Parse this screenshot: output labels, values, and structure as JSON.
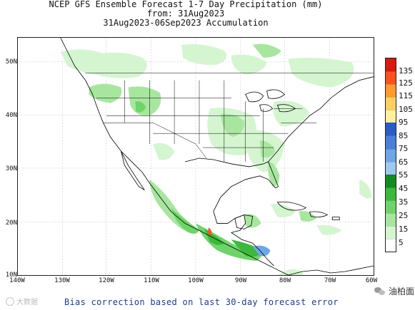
{
  "title": {
    "line1": "NCEP GFS Ensemble Forecast 1-7 Day Precipitation (mm)",
    "line2": "from: 31Aug2023",
    "line3": "31Aug2023-06Sep2023 Accumulation"
  },
  "axes": {
    "lat_labels": [
      "50N",
      "40N",
      "30N",
      "20N",
      "10N"
    ],
    "lon_labels": [
      "140W",
      "130W",
      "120W",
      "110W",
      "100W",
      "90W",
      "80W",
      "70W",
      "60W"
    ]
  },
  "legend": {
    "labels": [
      "5",
      "15",
      "25",
      "35",
      "45",
      "55",
      "65",
      "75",
      "85",
      "95",
      "105",
      "115",
      "125",
      "135"
    ],
    "colors": [
      "#ffffff",
      "#d4f5d0",
      "#a8e6a0",
      "#6ed46a",
      "#3cb83c",
      "#128c20",
      "#9fc8f0",
      "#6fa6e6",
      "#4a80d8",
      "#2a5cc8",
      "#fff0a0",
      "#ffd060",
      "#ff9a30",
      "#ff5020",
      "#d81a10"
    ]
  },
  "footer": {
    "text": "Bias correction based on last 30-day forecast error"
  },
  "watermarks": {
    "left": "大数据",
    "right": "油柏面"
  },
  "map": {
    "land_color": "#ffffff",
    "ocean_color": "#ffffff",
    "border_color": "#000000"
  }
}
